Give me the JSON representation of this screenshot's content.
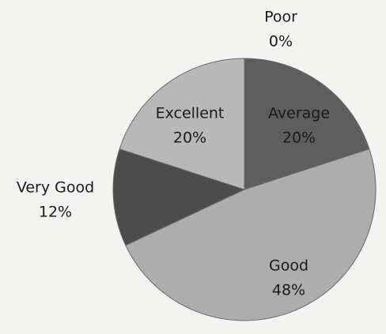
{
  "chart_data": {
    "type": "pie",
    "categories": [
      "Poor",
      "Average",
      "Good",
      "Very Good",
      "Excellent"
    ],
    "values": [
      0,
      20,
      48,
      12,
      20
    ],
    "value_labels": [
      "0%",
      "20%",
      "48%",
      "12%",
      "20%"
    ],
    "colors": [
      "#6e6e6e",
      "#5e5e5e",
      "#adadad",
      "#4c4c4c",
      "#b8b8b8"
    ]
  }
}
